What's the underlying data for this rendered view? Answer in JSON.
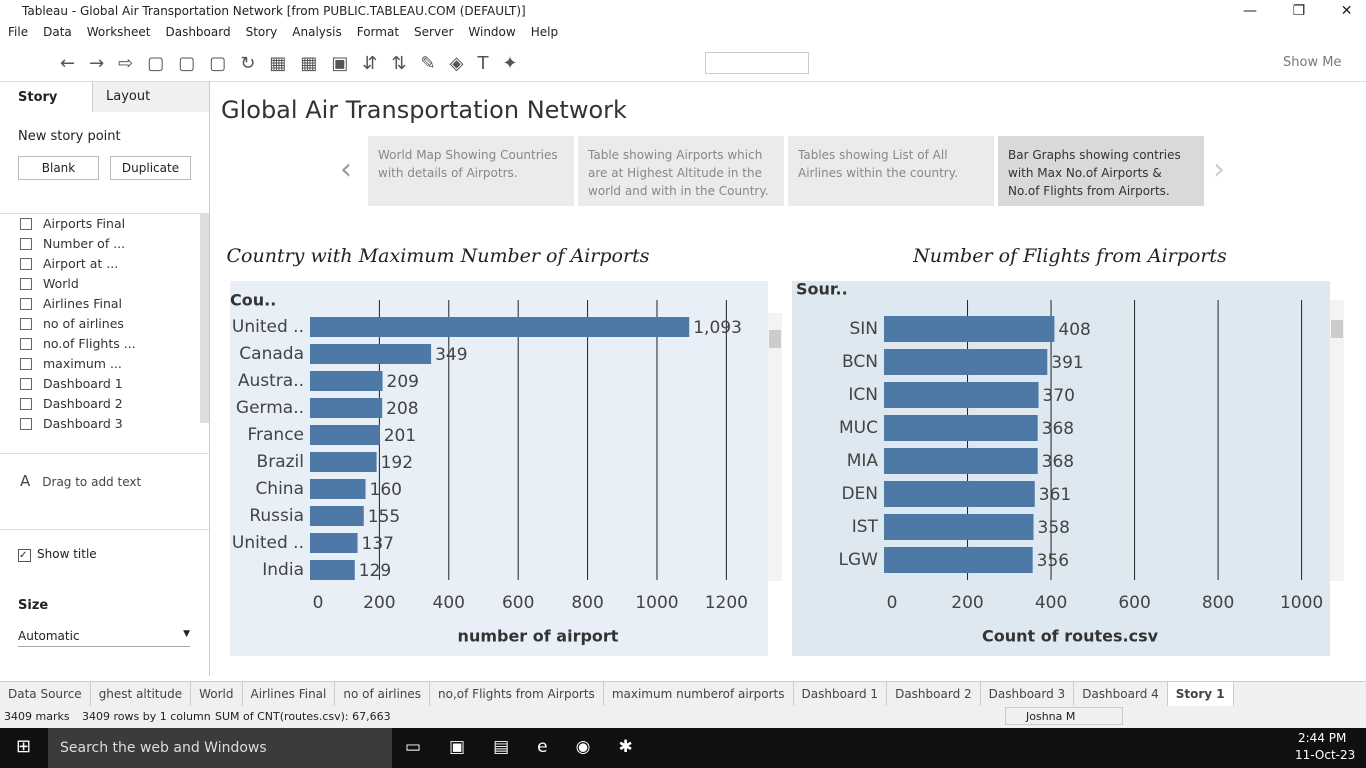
{
  "window": {
    "title": "Tableau - Global Air Transportation Network [from PUBLIC.TABLEAU.COM (DEFAULT)]"
  },
  "menu": [
    "File",
    "Data",
    "Worksheet",
    "Dashboard",
    "Story",
    "Analysis",
    "Format",
    "Server",
    "Window",
    "Help"
  ],
  "toolbar": {
    "show_me": "Show Me"
  },
  "sidebar": {
    "tabs": [
      "Story",
      "Layout"
    ],
    "new_story_point": "New story point",
    "buttons": [
      "Blank",
      "Duplicate"
    ],
    "sheets": [
      "Airports Final",
      "Number of ...",
      "Airport at ...",
      "World",
      "Airlines Final",
      "no of airlines",
      "no.of Flights ...",
      "maximum ...",
      "Dashboard 1",
      "Dashboard 2",
      "Dashboard 3"
    ],
    "drag_text": "Drag to add text",
    "show_title": "Show title",
    "size_label": "Size",
    "size_value": "Automatic"
  },
  "story": {
    "title": "Global Air Transportation Network",
    "points": [
      "World Map Showing Countries with details of Airpotrs.",
      "Table showing Airports which are at Highest Altitude in the world and with in the Country.",
      "Tables showing List of All Airlines within the country.",
      "Bar Graphs showing contries with Max No.of Airports & No.of Flights from Airports."
    ],
    "charts": [
      {
        "type": "bar",
        "title": "Country with Maximum Number of Airports",
        "row_header": "Cou..",
        "categories": [
          "United ..",
          "Canada",
          "Austra..",
          "Germa..",
          "France",
          "Brazil",
          "China",
          "Russia",
          "United ..",
          "India"
        ],
        "values": [
          1093,
          349,
          209,
          208,
          201,
          192,
          160,
          155,
          137,
          129
        ],
        "value_labels": [
          "1,093",
          "349",
          "209",
          "208",
          "201",
          "192",
          "160",
          "155",
          "137",
          "129"
        ],
        "xlim": [
          0,
          1320
        ],
        "xticks": [
          0,
          200,
          400,
          600,
          800,
          1000,
          1200
        ],
        "xlabel": "number of airport",
        "color": "#4e79a7",
        "grid": true
      },
      {
        "type": "bar",
        "title": "Number  of  Flights from Airports",
        "row_header": "Sour..",
        "categories": [
          "SIN",
          "BCN",
          "ICN",
          "MUC",
          "MIA",
          "DEN",
          "IST",
          "LGW"
        ],
        "values": [
          408,
          391,
          370,
          368,
          368,
          361,
          358,
          356
        ],
        "xlim": [
          0,
          1068
        ],
        "xticks": [
          0,
          200,
          400,
          600,
          800,
          1000
        ],
        "xlabel": "Count of routes.csv",
        "color": "#4e79a7",
        "grid": true
      }
    ]
  },
  "tabs": [
    "Data Source",
    "ghest altitude",
    "World",
    "Airlines Final",
    "no of airlines",
    "no,of Flights from Airports",
    "maximum numberof airports",
    "Dashboard 1",
    "Dashboard 2",
    "Dashboard 3",
    "Dashboard 4",
    "Story 1"
  ],
  "status": {
    "marks": "3409 marks",
    "rows": "3409 rows by 1 column",
    "sum": "SUM of CNT(routes.csv): 67,663",
    "user": "Joshna M"
  },
  "taskbar": {
    "search": "Search the web and Windows",
    "time": "2:44 PM",
    "date": "11-Oct-23"
  }
}
